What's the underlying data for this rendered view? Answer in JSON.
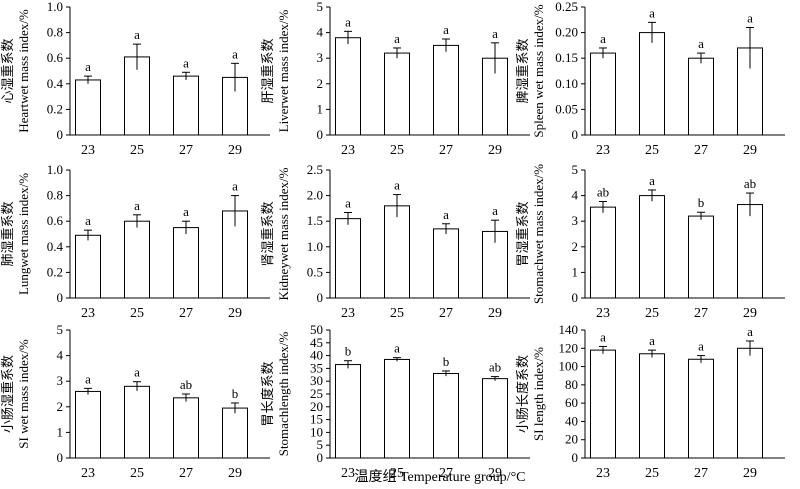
{
  "figure": {
    "xlabel": "温度组 Temperature group/°C"
  },
  "chart_data": [
    {
      "type": "bar",
      "ylabel_cn": "心湿重系数",
      "ylabel_en": "Heartwet mass index/%",
      "categories": [
        "23",
        "25",
        "27",
        "29"
      ],
      "values": [
        0.43,
        0.61,
        0.46,
        0.45
      ],
      "errors": [
        0.03,
        0.1,
        0.03,
        0.11
      ],
      "letters": [
        "a",
        "a",
        "a",
        "a"
      ],
      "ylim": [
        0,
        1.0
      ],
      "ticks": [
        "0",
        "0.2",
        "0.4",
        "0.6",
        "0.8",
        "1.0"
      ]
    },
    {
      "type": "bar",
      "ylabel_cn": "肝湿重系数",
      "ylabel_en": "Liverwet mass index/%",
      "categories": [
        "23",
        "25",
        "27",
        "29"
      ],
      "values": [
        3.8,
        3.2,
        3.5,
        3.0
      ],
      "errors": [
        0.25,
        0.2,
        0.25,
        0.6
      ],
      "letters": [
        "a",
        "a",
        "a",
        "a"
      ],
      "ylim": [
        0,
        5
      ],
      "ticks": [
        "0",
        "1",
        "2",
        "3",
        "4",
        "5"
      ]
    },
    {
      "type": "bar",
      "ylabel_cn": "脾湿重系数",
      "ylabel_en": "Spleen wet mass index/%",
      "categories": [
        "23",
        "25",
        "27",
        "29"
      ],
      "values": [
        0.16,
        0.2,
        0.15,
        0.17
      ],
      "errors": [
        0.01,
        0.02,
        0.01,
        0.04
      ],
      "letters": [
        "a",
        "a",
        "a",
        "a"
      ],
      "ylim": [
        0,
        0.25
      ],
      "ticks": [
        "0",
        "0.05",
        "0.10",
        "0.15",
        "0.20",
        "0.25"
      ]
    },
    {
      "type": "bar",
      "ylabel_cn": "肺湿重系数",
      "ylabel_en": "Lungwet mass index/%",
      "categories": [
        "23",
        "25",
        "27",
        "29"
      ],
      "values": [
        0.49,
        0.6,
        0.55,
        0.68
      ],
      "errors": [
        0.04,
        0.05,
        0.05,
        0.12
      ],
      "letters": [
        "a",
        "a",
        "a",
        "a"
      ],
      "ylim": [
        0,
        1.0
      ],
      "ticks": [
        "0",
        "0.2",
        "0.4",
        "0.6",
        "0.8",
        "1.0"
      ]
    },
    {
      "type": "bar",
      "ylabel_cn": "肾湿重系数",
      "ylabel_en": "Kidneywet mass index/%",
      "categories": [
        "23",
        "25",
        "27",
        "29"
      ],
      "values": [
        1.55,
        1.8,
        1.35,
        1.3
      ],
      "errors": [
        0.12,
        0.22,
        0.1,
        0.22
      ],
      "letters": [
        "a",
        "a",
        "a",
        "a"
      ],
      "ylim": [
        0,
        2.5
      ],
      "ticks": [
        "0",
        "0.5",
        "1.0",
        "1.5",
        "2.0",
        "2.5"
      ]
    },
    {
      "type": "bar",
      "ylabel_cn": "胃湿重系数",
      "ylabel_en": "Stomachwet mass index/%",
      "categories": [
        "23",
        "25",
        "27",
        "29"
      ],
      "values": [
        3.55,
        4.0,
        3.2,
        3.65
      ],
      "errors": [
        0.22,
        0.22,
        0.15,
        0.45
      ],
      "letters": [
        "ab",
        "a",
        "b",
        "ab"
      ],
      "ylim": [
        0,
        5
      ],
      "ticks": [
        "0",
        "1",
        "2",
        "3",
        "4",
        "5"
      ]
    },
    {
      "type": "bar",
      "ylabel_cn": "小肠湿重系数",
      "ylabel_en": "SI wet mass index/%",
      "categories": [
        "23",
        "25",
        "27",
        "29"
      ],
      "values": [
        2.6,
        2.8,
        2.35,
        1.95
      ],
      "errors": [
        0.12,
        0.18,
        0.15,
        0.2
      ],
      "letters": [
        "a",
        "a",
        "ab",
        "b"
      ],
      "ylim": [
        0,
        5
      ],
      "ticks": [
        "0",
        "1",
        "2",
        "3",
        "4",
        "5"
      ]
    },
    {
      "type": "bar",
      "ylabel_cn": "胃长度系数",
      "ylabel_en": "Stomachlength index/%",
      "categories": [
        "23",
        "25",
        "27",
        "29"
      ],
      "values": [
        36.5,
        38.5,
        33.0,
        31.0
      ],
      "errors": [
        1.5,
        0.7,
        1.0,
        0.8
      ],
      "letters": [
        "b",
        "a",
        "b",
        "ab"
      ],
      "ylim": [
        0,
        50
      ],
      "ticks": [
        "0",
        "5",
        "10",
        "15",
        "20",
        "25",
        "30",
        "35",
        "40",
        "45",
        "50"
      ]
    },
    {
      "type": "bar",
      "ylabel_cn": "小肠长度系数",
      "ylabel_en": "SI length index/%",
      "categories": [
        "23",
        "25",
        "27",
        "29"
      ],
      "values": [
        118,
        114,
        108,
        120
      ],
      "errors": [
        4,
        4,
        4,
        8
      ],
      "letters": [
        "a",
        "a",
        "a",
        "a"
      ],
      "ylim": [
        0,
        140
      ],
      "ticks": [
        "0",
        "20",
        "40",
        "60",
        "80",
        "100",
        "120",
        "140"
      ]
    }
  ]
}
